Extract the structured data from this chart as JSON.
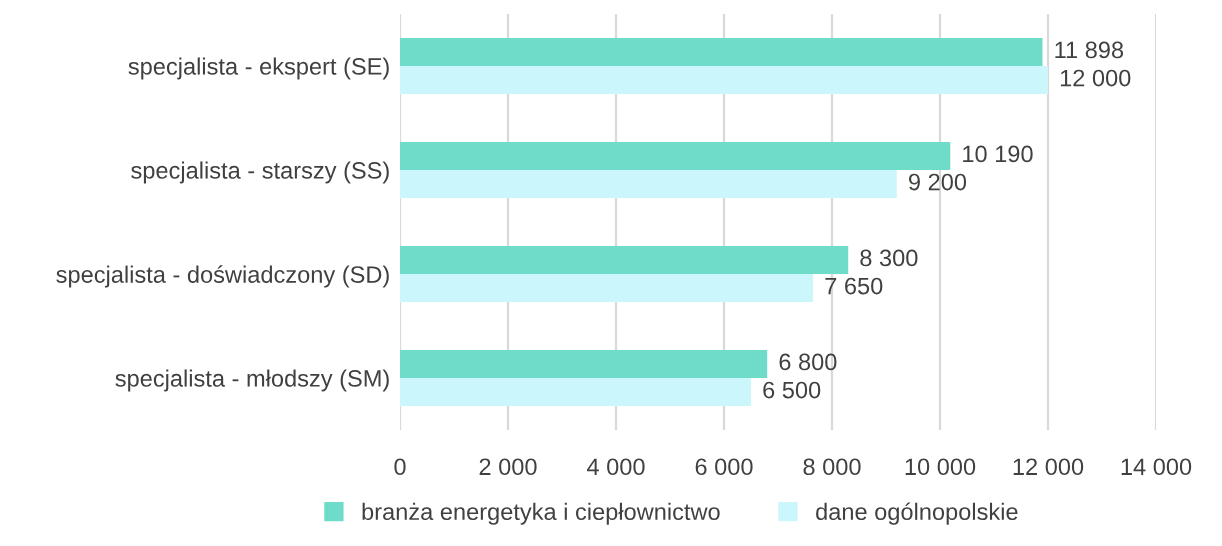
{
  "chart_data": {
    "type": "bar",
    "orientation": "horizontal",
    "categories": [
      "specjalista - ekspert (SE)",
      "specjalista - starszy (SS)",
      "specjalista - doświadczony (SD)",
      "specjalista - młodszy (SM)"
    ],
    "series": [
      {
        "name": "branża energetyka i ciepłownictwo",
        "color": "#6fdcc9",
        "values": [
          11898,
          10190,
          8300,
          6800
        ],
        "value_labels": [
          "11 898",
          "10 190",
          "8 300",
          "6 800"
        ]
      },
      {
        "name": "dane ogólnopolskie",
        "color": "#cbf6fb",
        "values": [
          12000,
          9200,
          7650,
          6500
        ],
        "value_labels": [
          "12 000",
          "9 200",
          "7 650",
          "6 500"
        ]
      }
    ],
    "xlim": [
      0,
      14000
    ],
    "xticks": [
      0,
      {
        "value": 2000,
        "label": "2 000"
      },
      {
        "value": 4000,
        "label": "4 000"
      },
      {
        "value": 6000,
        "label": "6 000"
      },
      {
        "value": 8000,
        "label": "8 000"
      },
      {
        "value": 10000,
        "label": "10 000"
      },
      {
        "value": 12000,
        "label": "12 000"
      },
      {
        "value": 14000,
        "label": "14 000"
      }
    ],
    "grid": "x",
    "legend": "bottom"
  }
}
